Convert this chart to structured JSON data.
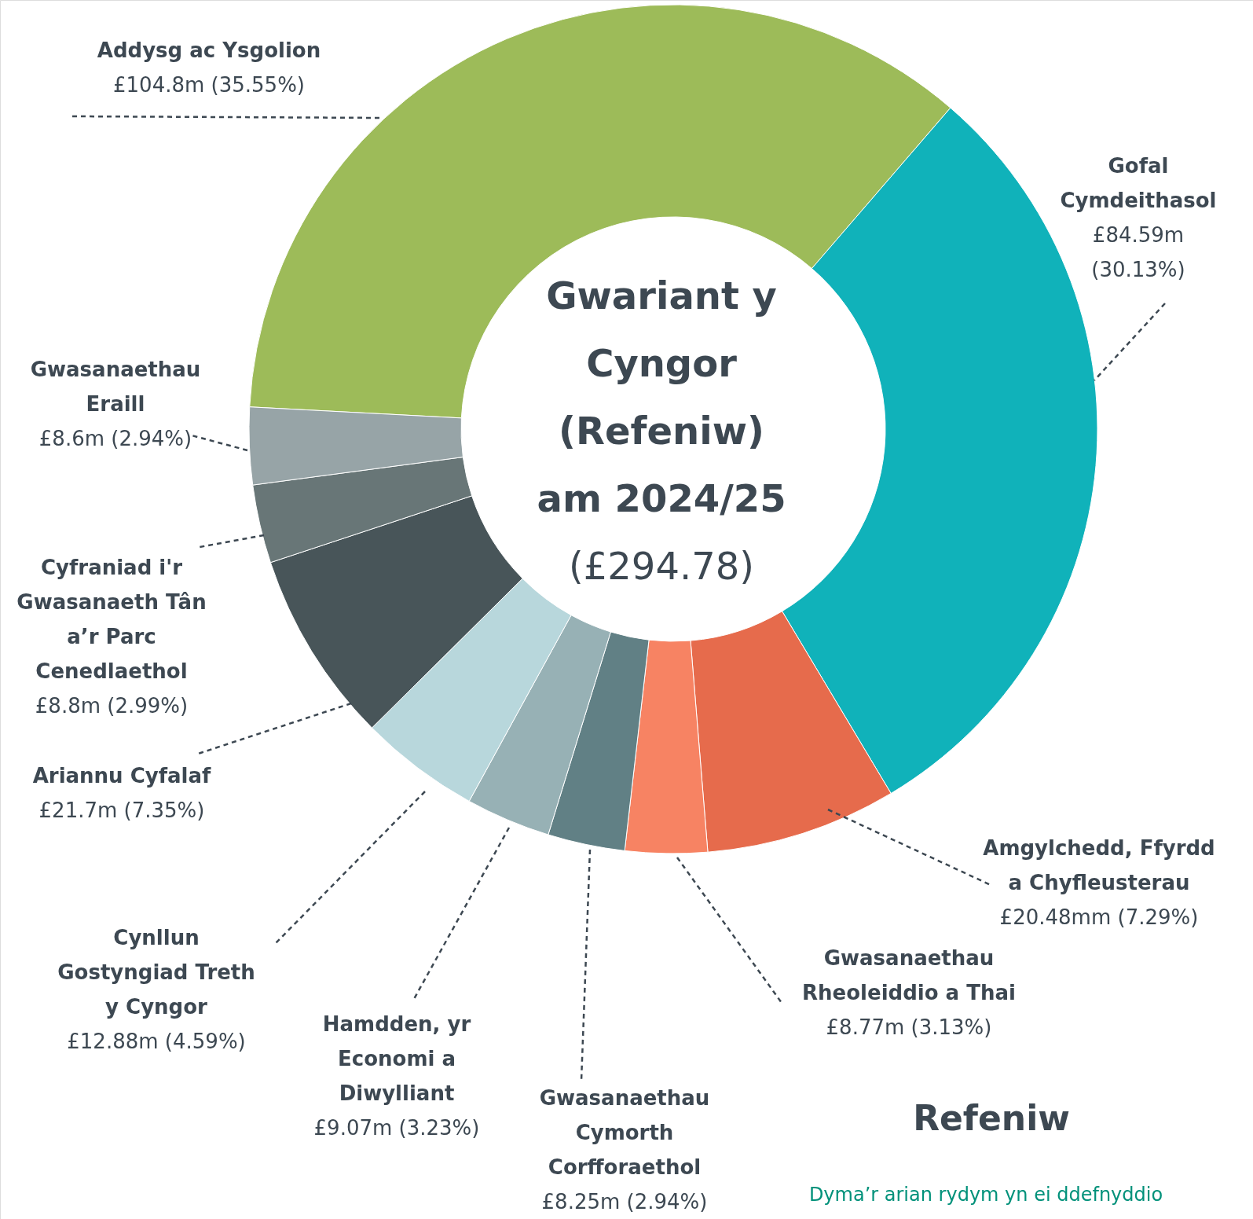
{
  "chart_data": {
    "type": "donut",
    "title": "Gwariant y Cyngor (Refeniw) am 2024/25",
    "subtitle": "(£294.78)",
    "categories": [
      "Addysg ac Ysgolion",
      "Gofal Cymdeithasol",
      "Amgylchedd, Ffyrdd a Chyfleusterau",
      "Gwasanaethau Rheoleiddio a Thai",
      "Gwasanaethau Cymorth Corfforaethol",
      "Hamdden, yr Economi a Diwylliant",
      "Cynllun Gostyngiad Treth y Cyngor",
      "Ariannu Cyfalaf",
      "Cyfraniad i'r Gwasanaeth Tân a’r Parc Cenedlaethol",
      "Gwasanaethau Eraill"
    ],
    "values": [
      35.55,
      30.13,
      7.29,
      3.13,
      2.94,
      3.23,
      4.59,
      7.35,
      2.99,
      2.94
    ],
    "value_labels": [
      "£104.8m (35.55%)",
      "£84.59m (30.13%)",
      "£20.48mm (7.29%)",
      "£8.77m (3.13%)",
      "£8.25m (2.94%)",
      "£9.07m (3.23%)",
      "£12.88m (4.59%)",
      "£21.7m (7.35%)",
      "£8.8m (2.99%)",
      "£8.6m (2.94%)"
    ],
    "colors": [
      "#9dbb59",
      "#10b2ba",
      "#e66b4c",
      "#f78363",
      "#618085",
      "#97b1b5",
      "#b8d7dc",
      "#485559",
      "#687677",
      "#97a4a7"
    ],
    "annotations": [
      "Refeniw",
      "Dyma’r arian rydym yn ei ddefnyddio"
    ]
  }
}
